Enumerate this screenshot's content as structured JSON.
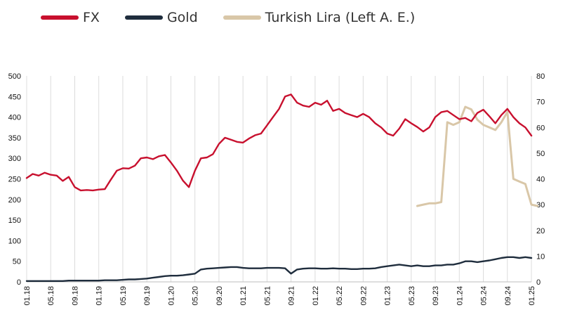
{
  "chart_data": {
    "type": "line",
    "legend_placement": "top-left",
    "grid": "vertical",
    "y_left": {
      "ylim": [
        0,
        500
      ],
      "ticks": [
        "500",
        "450",
        "400",
        "350",
        "300",
        "250",
        "200",
        "150",
        "100",
        "50",
        "0"
      ]
    },
    "y_right": {
      "ylim": [
        0,
        80
      ],
      "ticks": [
        "80",
        "70",
        "60",
        "50",
        "40",
        "30",
        "20",
        "10",
        "0"
      ]
    },
    "x_ticks": [
      "01.18",
      "05.18",
      "09.18",
      "01.19",
      "05.19",
      "09.19",
      "01.20",
      "05.20",
      "09.20",
      "01.21",
      "05.21",
      "09.21",
      "01.22",
      "05.22",
      "09.22",
      "01.23",
      "05.23",
      "09.23",
      "01.24",
      "05.24",
      "09.24",
      "01.25"
    ],
    "series": [
      {
        "name": "FX",
        "axis": "left",
        "color": "#c8102e",
        "values": [
          252,
          262,
          258,
          265,
          260,
          258,
          245,
          255,
          230,
          222,
          223,
          222,
          224,
          225,
          248,
          270,
          276,
          275,
          282,
          300,
          302,
          298,
          305,
          308,
          290,
          270,
          246,
          230,
          270,
          300,
          302,
          310,
          335,
          350,
          345,
          340,
          338,
          348,
          356,
          360,
          380,
          400,
          420,
          450,
          455,
          435,
          428,
          425,
          435,
          430,
          440,
          415,
          420,
          410,
          405,
          400,
          408,
          400,
          385,
          375,
          360,
          355,
          372,
          395,
          385,
          376,
          365,
          375,
          400,
          412,
          415,
          405,
          395,
          398,
          390,
          410,
          418,
          402,
          385,
          405,
          420,
          400,
          385,
          375,
          355
        ]
      },
      {
        "name": "Gold",
        "axis": "left",
        "color": "#1f2d3d",
        "values": [
          2,
          2,
          2,
          2,
          2,
          2,
          2,
          3,
          3,
          3,
          3,
          3,
          3,
          4,
          4,
          4,
          5,
          6,
          6,
          7,
          8,
          10,
          12,
          14,
          15,
          15,
          16,
          18,
          20,
          30,
          32,
          33,
          34,
          35,
          36,
          36,
          34,
          33,
          33,
          33,
          34,
          34,
          34,
          33,
          20,
          30,
          32,
          33,
          33,
          32,
          32,
          33,
          32,
          32,
          31,
          31,
          32,
          32,
          33,
          36,
          38,
          40,
          42,
          40,
          38,
          40,
          38,
          38,
          40,
          40,
          42,
          42,
          45,
          50,
          50,
          48,
          50,
          52,
          55,
          58,
          60,
          60,
          58,
          60,
          58
        ]
      },
      {
        "name": "Turkish Lira (Left A. E.)",
        "axis": "right",
        "color": "#d9c7a8",
        "start_index": 65,
        "values": [
          29.5,
          30,
          30.5,
          30.5,
          31,
          62,
          61,
          62,
          68,
          67,
          63,
          61,
          60,
          59,
          62,
          66,
          40,
          39,
          38,
          30,
          29.5
        ]
      }
    ]
  }
}
